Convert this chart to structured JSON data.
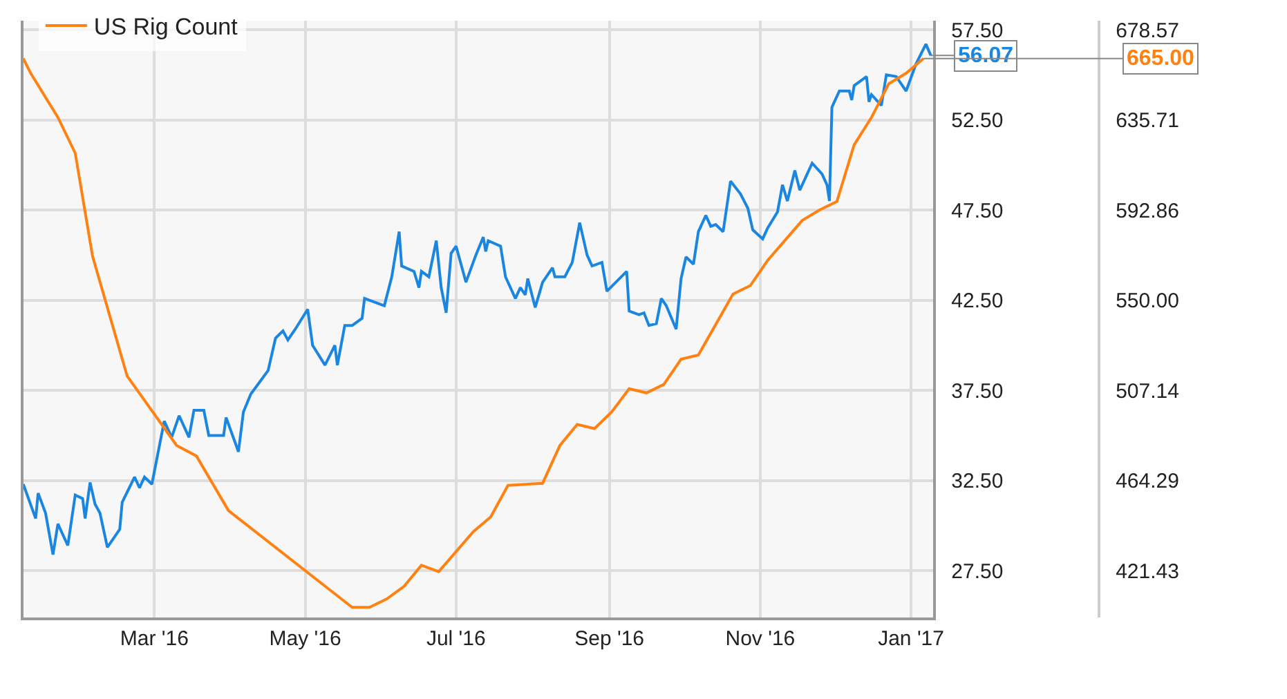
{
  "chart_data": {
    "type": "line",
    "xlim": [
      "2016-01-08",
      "2017-01-10"
    ],
    "xticks": [
      {
        "value": "2016-03-01",
        "label": "Mar '16"
      },
      {
        "value": "2016-05-01",
        "label": "May '16"
      },
      {
        "value": "2016-07-01",
        "label": "Jul '16"
      },
      {
        "value": "2016-09-01",
        "label": "Sep '16"
      },
      {
        "value": "2016-11-01",
        "label": "Nov '16"
      },
      {
        "value": "2017-01-01",
        "label": "Jan '17"
      }
    ],
    "ylim": [
      24.9,
      58.0
    ],
    "yticks": [
      {
        "value": 27.5,
        "label": "27.50"
      },
      {
        "value": 32.5,
        "label": "32.50"
      },
      {
        "value": 37.5,
        "label": "37.50"
      },
      {
        "value": 42.5,
        "label": "42.50"
      },
      {
        "value": 47.5,
        "label": "47.50"
      },
      {
        "value": 52.5,
        "label": "52.50"
      },
      {
        "value": 57.5,
        "label": "57.50"
      }
    ],
    "y2lim": [
      399.1,
      683.0
    ],
    "y2ticks": [
      {
        "value": 421.43,
        "label": "421.43"
      },
      {
        "value": 464.29,
        "label": "464.29"
      },
      {
        "value": 507.14,
        "label": "507.14"
      },
      {
        "value": 550.0,
        "label": "550.00"
      },
      {
        "value": 592.86,
        "label": "592.86"
      },
      {
        "value": 635.71,
        "label": "635.71"
      },
      {
        "value": 678.57,
        "label": "678.57"
      }
    ],
    "grid": true,
    "legend": "top left",
    "series": [
      {
        "color": "#1a86e0",
        "x": [
          "2016-01-08",
          "2016-01-13",
          "2016-01-14",
          "2016-01-17",
          "2016-01-20",
          "2016-01-22",
          "2016-01-26",
          "2016-01-29",
          "2016-02-01",
          "2016-02-02",
          "2016-02-04",
          "2016-02-06",
          "2016-02-08",
          "2016-02-11",
          "2016-02-16",
          "2016-02-17",
          "2016-02-22",
          "2016-02-24",
          "2016-02-26",
          "2016-02-29",
          "2016-03-05",
          "2016-03-08",
          "2016-03-11",
          "2016-03-15",
          "2016-03-17",
          "2016-03-21",
          "2016-03-23",
          "2016-03-29",
          "2016-03-30",
          "2016-04-04",
          "2016-04-06",
          "2016-04-09",
          "2016-04-16",
          "2016-04-19",
          "2016-04-22",
          "2016-04-24",
          "2016-04-27",
          "2016-05-02",
          "2016-05-04",
          "2016-05-09",
          "2016-05-13",
          "2016-05-14",
          "2016-05-17",
          "2016-05-20",
          "2016-05-24",
          "2016-05-25",
          "2016-06-02",
          "2016-06-05",
          "2016-06-08",
          "2016-06-09",
          "2016-06-14",
          "2016-06-16",
          "2016-06-17",
          "2016-06-20",
          "2016-06-23",
          "2016-06-25",
          "2016-06-27",
          "2016-06-29",
          "2016-07-01",
          "2016-07-05",
          "2016-07-09",
          "2016-07-12",
          "2016-07-13",
          "2016-07-14",
          "2016-07-19",
          "2016-07-21",
          "2016-07-25",
          "2016-07-27",
          "2016-07-29",
          "2016-07-30",
          "2016-08-02",
          "2016-08-05",
          "2016-08-09",
          "2016-08-10",
          "2016-08-14",
          "2016-08-17",
          "2016-08-20",
          "2016-08-23",
          "2016-08-25",
          "2016-08-29",
          "2016-08-31",
          "2016-09-08",
          "2016-09-09",
          "2016-09-13",
          "2016-09-15",
          "2016-09-17",
          "2016-09-20",
          "2016-09-22",
          "2016-09-24",
          "2016-09-28",
          "2016-09-30",
          "2016-10-02",
          "2016-10-05",
          "2016-10-07",
          "2016-10-10",
          "2016-10-12",
          "2016-10-14",
          "2016-10-17",
          "2016-10-20",
          "2016-10-24",
          "2016-10-27",
          "2016-10-29",
          "2016-11-02",
          "2016-11-04",
          "2016-11-08",
          "2016-11-10",
          "2016-11-12",
          "2016-11-15",
          "2016-11-17",
          "2016-11-22",
          "2016-11-26",
          "2016-11-28",
          "2016-11-29",
          "2016-11-30",
          "2016-12-03",
          "2016-12-07",
          "2016-12-08",
          "2016-12-09",
          "2016-12-14",
          "2016-12-15",
          "2016-12-16",
          "2016-12-20",
          "2016-12-22",
          "2016-12-26",
          "2016-12-30",
          "2017-01-03",
          "2017-01-07",
          "2017-01-09"
        ],
        "values": [
          32.3,
          30.4,
          31.8,
          30.7,
          28.4,
          30.1,
          28.9,
          31.7,
          31.5,
          30.4,
          32.4,
          31.2,
          30.7,
          28.8,
          29.8,
          31.3,
          32.7,
          32.1,
          32.7,
          32.3,
          35.8,
          34.9,
          36.1,
          34.9,
          36.4,
          36.4,
          35.0,
          35.0,
          36.0,
          34.1,
          36.3,
          37.3,
          38.6,
          40.4,
          40.8,
          40.3,
          40.9,
          42.0,
          40.0,
          38.9,
          40.0,
          38.9,
          41.1,
          41.1,
          41.5,
          42.6,
          42.2,
          43.8,
          46.3,
          44.4,
          44.1,
          43.2,
          44.1,
          43.8,
          45.8,
          43.2,
          41.8,
          45.1,
          45.5,
          43.5,
          45.0,
          46.0,
          45.2,
          45.8,
          45.5,
          43.8,
          42.6,
          43.2,
          42.8,
          43.7,
          42.1,
          43.5,
          44.3,
          43.8,
          43.8,
          44.6,
          46.8,
          45.0,
          44.4,
          44.6,
          43.0,
          44.1,
          41.9,
          41.7,
          41.8,
          41.1,
          41.2,
          42.6,
          42.2,
          40.9,
          43.7,
          44.9,
          44.5,
          46.3,
          47.2,
          46.6,
          46.7,
          46.3,
          49.1,
          48.4,
          47.6,
          46.4,
          45.9,
          46.5,
          47.4,
          48.9,
          48.0,
          49.7,
          48.6,
          50.1,
          49.5,
          48.9,
          48.0,
          53.2,
          54.1,
          54.1,
          53.6,
          54.4,
          54.9,
          53.5,
          53.9,
          53.3,
          55.0,
          54.9,
          54.1,
          55.6,
          56.7,
          56.07
        ],
        "value_labels": [
          null,
          null,
          null,
          null,
          null,
          null,
          null,
          null,
          null,
          null,
          null,
          null,
          null,
          null,
          null,
          null,
          null,
          null,
          null,
          null,
          null,
          null,
          null,
          null,
          null,
          null,
          null,
          null,
          null,
          null,
          null,
          null,
          null,
          null,
          null,
          null,
          null,
          null,
          null,
          null,
          null,
          null,
          null,
          null,
          null,
          null,
          null,
          null,
          null,
          null,
          null,
          null,
          null,
          null,
          null,
          null,
          null,
          null,
          null,
          null,
          null,
          null,
          null,
          null,
          null,
          null,
          null,
          null,
          null,
          null,
          null,
          null,
          null,
          null,
          null,
          null,
          null,
          null,
          null,
          null,
          null,
          null,
          null,
          null,
          null,
          null,
          null,
          null,
          null,
          null,
          null,
          null,
          null,
          null,
          null,
          null,
          null,
          null,
          null,
          null,
          null,
          null,
          null,
          null,
          null,
          null,
          null,
          null,
          null,
          null,
          null,
          null,
          null,
          null,
          null,
          null,
          null,
          null,
          null,
          null,
          null,
          null,
          null,
          null,
          null,
          null,
          null,
          "56.07"
        ]
      },
      {
        "name": "US Rig Count",
        "color": "#ff8112",
        "axis": "y2",
        "x": [
          "2016-01-08",
          "2016-01-11",
          "2016-01-22",
          "2016-01-29",
          "2016-02-05",
          "2016-02-19",
          "2016-03-10",
          "2016-03-18",
          "2016-03-31",
          "2016-05-20",
          "2016-05-27",
          "2016-06-03",
          "2016-06-10",
          "2016-06-17",
          "2016-06-24",
          "2016-07-08",
          "2016-07-15",
          "2016-07-22",
          "2016-08-05",
          "2016-08-12",
          "2016-08-19",
          "2016-08-26",
          "2016-09-02",
          "2016-09-09",
          "2016-09-16",
          "2016-09-23",
          "2016-09-30",
          "2016-10-07",
          "2016-10-21",
          "2016-10-28",
          "2016-11-04",
          "2016-11-18",
          "2016-11-25",
          "2016-12-02",
          "2016-12-09",
          "2016-12-16",
          "2016-12-23",
          "2016-12-30",
          "2017-01-06"
        ],
        "values": [
          665,
          658,
          637,
          620,
          571,
          514,
          481,
          476,
          450,
          404,
          404,
          408,
          414,
          424,
          421,
          440,
          447,
          462,
          463,
          481,
          491,
          489,
          497,
          508,
          506,
          510,
          522,
          524,
          553,
          557,
          569,
          588,
          593,
          597,
          624,
          637,
          653,
          658,
          665
        ],
        "value_labels": [
          null,
          null,
          null,
          null,
          null,
          null,
          null,
          null,
          null,
          null,
          null,
          null,
          null,
          null,
          null,
          null,
          null,
          null,
          null,
          null,
          null,
          null,
          null,
          null,
          null,
          null,
          null,
          null,
          null,
          null,
          null,
          null,
          null,
          null,
          null,
          null,
          null,
          null,
          "665.00"
        ]
      }
    ]
  }
}
